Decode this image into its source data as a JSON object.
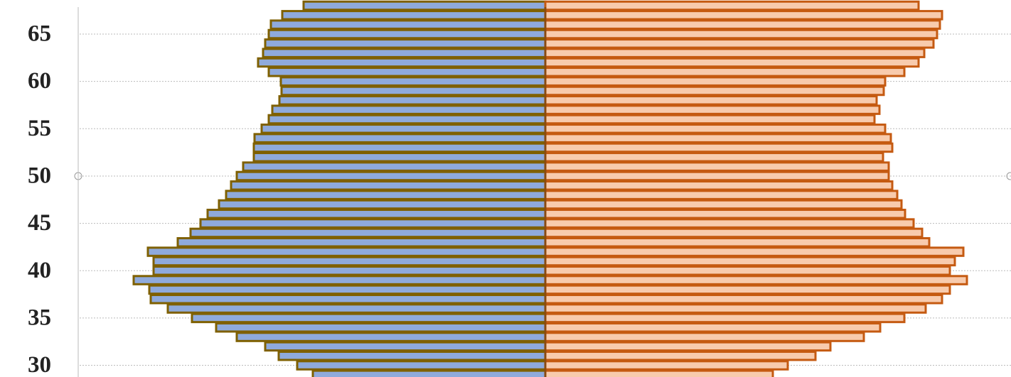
{
  "chart_data": {
    "type": "pyramid",
    "categories": [
      null,
      "30",
      null,
      null,
      null,
      null,
      "35",
      null,
      null,
      null,
      null,
      "40",
      null,
      null,
      null,
      null,
      "45",
      null,
      null,
      null,
      null,
      "50",
      null,
      null,
      null,
      null,
      "55",
      null,
      null,
      null,
      null,
      "60",
      null,
      null,
      null,
      null,
      "65",
      null,
      null,
      null
    ],
    "series": [
      {
        "color": "#8faadc",
        "values": [
          327,
          349,
          375,
          394,
          434,
          463,
          497,
          531,
          555,
          557,
          579,
          551,
          551,
          559,
          517,
          499,
          485,
          475,
          459,
          449,
          442,
          434,
          425,
          410,
          410,
          409,
          399,
          389,
          384,
          374,
          371,
          372,
          389,
          404,
          397,
          394,
          389,
          386,
          370,
          340
        ]
      },
      {
        "color": "#f8cbad",
        "values": [
          320,
          341,
          380,
          401,
          448,
          471,
          505,
          535,
          558,
          569,
          593,
          569,
          576,
          588,
          540,
          530,
          518,
          506,
          501,
          495,
          488,
          483,
          483,
          475,
          488,
          486,
          478,
          463,
          470,
          466,
          476,
          478,
          505,
          525,
          533,
          546,
          551,
          555,
          558,
          525
        ]
      }
    ],
    "grid": true
  }
}
